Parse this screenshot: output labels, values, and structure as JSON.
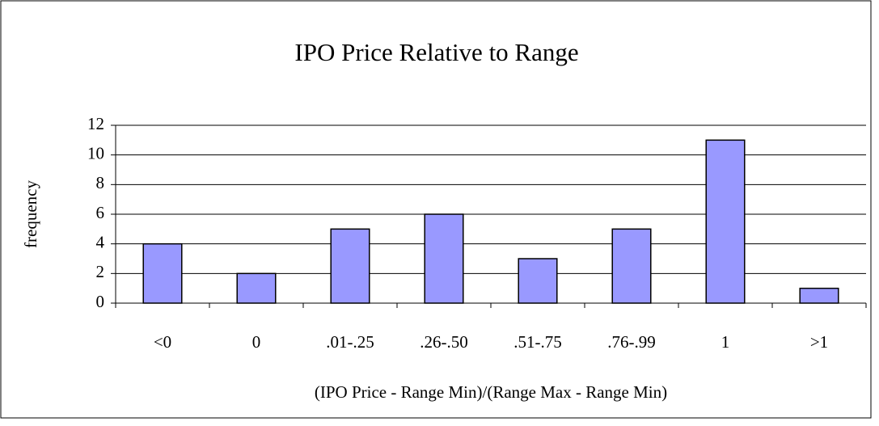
{
  "chart_data": {
    "type": "bar",
    "title": "IPO Price Relative to Range",
    "x_label": "(IPO Price - Range Min)/(Range Max - Range Min)",
    "y_label": "frequency",
    "categories": [
      "<0",
      "0",
      ".01-.25",
      ".26-.50",
      ".51-.75",
      ".76-.99",
      "1",
      ">1"
    ],
    "values": [
      4,
      2,
      5,
      6,
      3,
      5,
      11,
      1
    ],
    "color": "#9999ff",
    "ylim": [
      0,
      12
    ],
    "yticks": [
      0,
      2,
      4,
      6,
      8,
      10,
      12
    ],
    "grid": true
  }
}
